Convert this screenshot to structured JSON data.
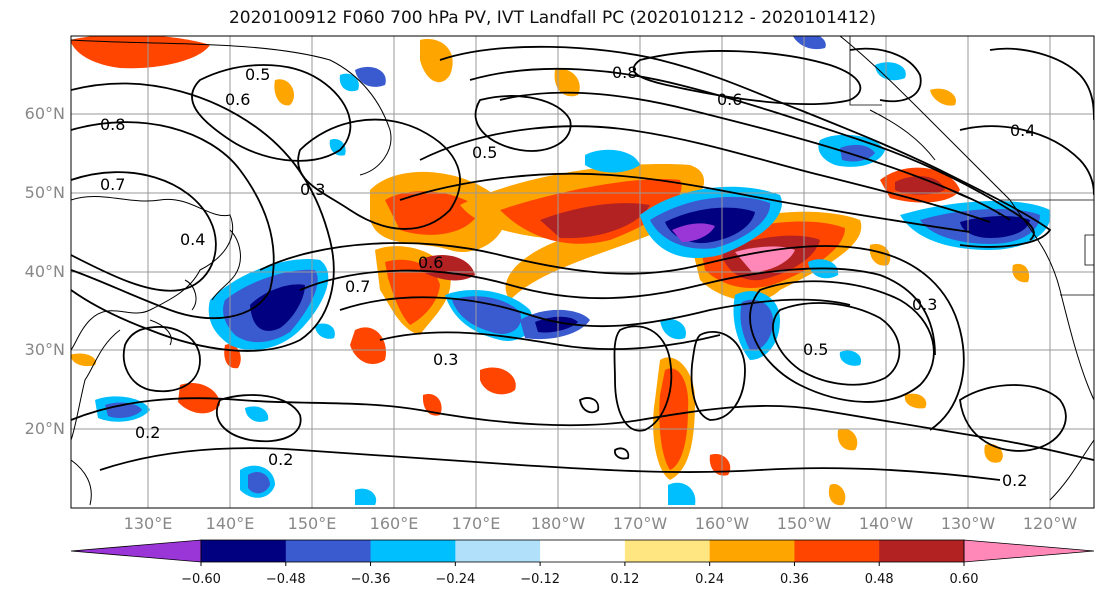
{
  "title": "2020100912 F060 700 hPa PV, IVT Landfall PC (2020101212 - 2020101412)",
  "lat_labels": [
    "60°N",
    "50°N",
    "40°N",
    "30°N",
    "20°N"
  ],
  "lon_labels": [
    "130°E",
    "140°E",
    "150°E",
    "160°E",
    "170°E",
    "180°W",
    "170°W",
    "160°W",
    "150°W",
    "140°W",
    "130°W",
    "120°W"
  ],
  "contour_labels": [
    "0.8",
    "0.7",
    "0.6",
    "0.5",
    "0.4",
    "0.3",
    "0.2",
    "0.8",
    "0.6",
    "0.5",
    "0.4",
    "0.3",
    "0.2",
    "0.7",
    "0.6",
    "0.5",
    "0.3",
    "0.2"
  ],
  "colorbar": {
    "ticks": [
      "−0.60",
      "−0.48",
      "−0.36",
      "−0.24",
      "−0.12",
      "0.12",
      "0.24",
      "0.36",
      "0.48",
      "0.60"
    ],
    "colors": [
      "#9a35d8",
      "#000080",
      "#3a5bd0",
      "#00bfff",
      "#b0e0fa",
      "#ffffff",
      "#ffe680",
      "#ffa500",
      "#ff4500",
      "#b22222",
      "#ff88b8"
    ]
  }
}
